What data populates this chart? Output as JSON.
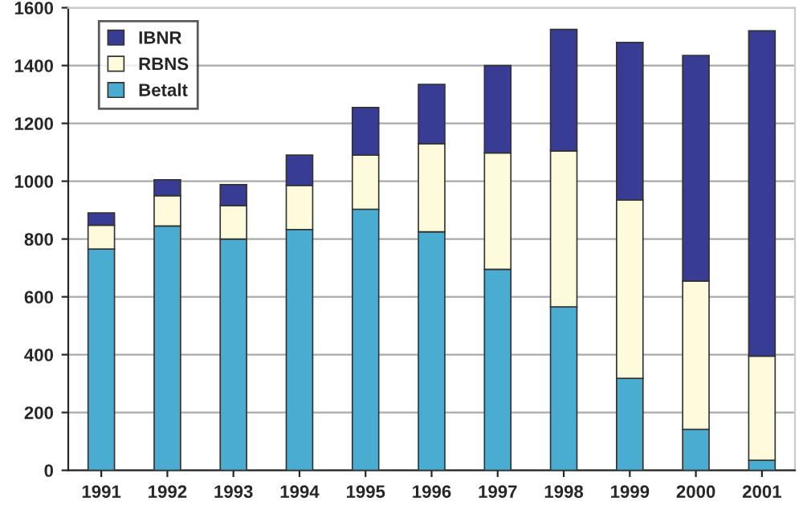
{
  "chart_data": {
    "type": "bar",
    "stacked": true,
    "categories": [
      "1991",
      "1992",
      "1993",
      "1994",
      "1995",
      "1996",
      "1997",
      "1998",
      "1999",
      "2000",
      "2001"
    ],
    "series": [
      {
        "name": "Betalt",
        "color": "#4aacd0",
        "values": [
          765,
          845,
          800,
          833,
          903,
          825,
          695,
          565,
          318,
          142,
          35
        ]
      },
      {
        "name": "RBNS",
        "color": "#fdfbdc",
        "values": [
          83,
          105,
          115,
          152,
          187,
          305,
          403,
          540,
          617,
          513,
          360
        ]
      },
      {
        "name": "IBNR",
        "color": "#383c94",
        "values": [
          42,
          55,
          73,
          105,
          165,
          205,
          302,
          420,
          545,
          780,
          1125
        ]
      }
    ],
    "ylim": [
      0,
      1600
    ],
    "yticks": [
      0,
      200,
      400,
      600,
      800,
      1000,
      1200,
      1400,
      1600
    ],
    "grid": "y",
    "legend": "top left"
  }
}
